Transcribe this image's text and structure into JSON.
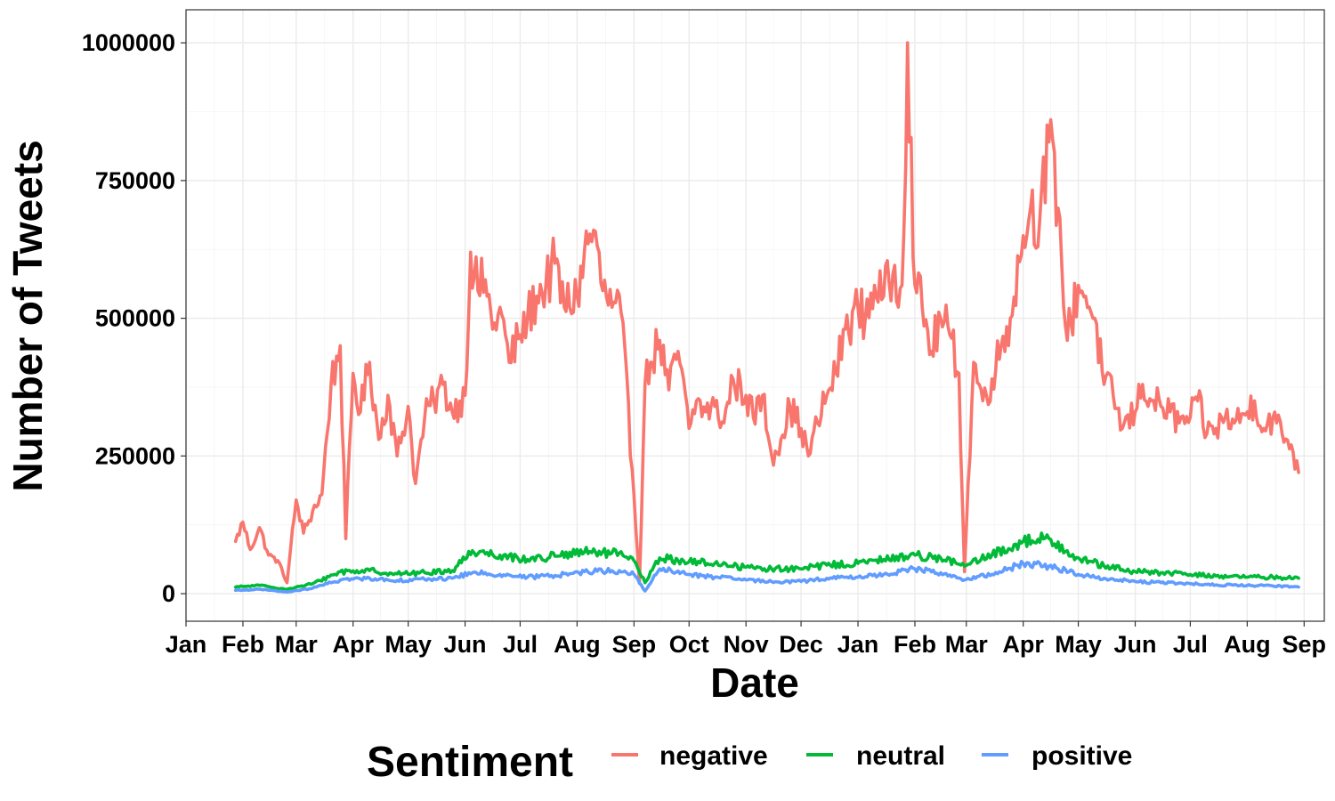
{
  "chart_data": {
    "type": "line",
    "title": "",
    "xlabel": "Date",
    "ylabel": "Number of Tweets",
    "xlim": [
      "2020-01-01",
      "2021-09-12"
    ],
    "ylim": [
      -50000,
      1060000
    ],
    "y_ticks": [
      0,
      250000,
      500000,
      750000,
      1000000
    ],
    "y_tick_labels": [
      "0",
      "250000",
      "500000",
      "750000",
      "1000000"
    ],
    "x_ticks": [
      "2020-01-01",
      "2020-02-01",
      "2020-03-01",
      "2020-04-01",
      "2020-05-01",
      "2020-06-01",
      "2020-07-01",
      "2020-08-01",
      "2020-09-01",
      "2020-10-01",
      "2020-11-01",
      "2020-12-01",
      "2021-01-01",
      "2021-02-01",
      "2021-03-01",
      "2021-04-01",
      "2021-05-01",
      "2021-06-01",
      "2021-07-01",
      "2021-08-01",
      "2021-09-01"
    ],
    "x_tick_labels": [
      "Jan",
      "Feb",
      "Mar",
      "Apr",
      "May",
      "Jun",
      "Jul",
      "Aug",
      "Sep",
      "Oct",
      "Nov",
      "Dec",
      "Jan",
      "Feb",
      "Mar",
      "Apr",
      "May",
      "Jun",
      "Jul",
      "Aug",
      "Sep"
    ],
    "grid": true,
    "legend": {
      "title": "Sentiment",
      "position": "bottom"
    },
    "series": [
      {
        "name": "negative",
        "color": "#F8766D",
        "x": [
          "2020-01-28",
          "2020-02-01",
          "2020-02-05",
          "2020-02-10",
          "2020-02-15",
          "2020-02-20",
          "2020-02-25",
          "2020-03-01",
          "2020-03-05",
          "2020-03-10",
          "2020-03-15",
          "2020-03-20",
          "2020-03-25",
          "2020-03-28",
          "2020-04-01",
          "2020-04-05",
          "2020-04-10",
          "2020-04-15",
          "2020-04-20",
          "2020-04-25",
          "2020-05-01",
          "2020-05-05",
          "2020-05-10",
          "2020-05-15",
          "2020-05-20",
          "2020-05-25",
          "2020-06-01",
          "2020-06-04",
          "2020-06-08",
          "2020-06-12",
          "2020-06-16",
          "2020-06-20",
          "2020-06-25",
          "2020-07-01",
          "2020-07-05",
          "2020-07-10",
          "2020-07-15",
          "2020-07-20",
          "2020-07-25",
          "2020-08-01",
          "2020-08-05",
          "2020-08-10",
          "2020-08-15",
          "2020-08-20",
          "2020-08-25",
          "2020-09-01",
          "2020-09-04",
          "2020-09-07",
          "2020-09-10",
          "2020-09-15",
          "2020-09-20",
          "2020-09-25",
          "2020-10-01",
          "2020-10-05",
          "2020-10-10",
          "2020-10-15",
          "2020-10-20",
          "2020-10-25",
          "2020-11-01",
          "2020-11-05",
          "2020-11-10",
          "2020-11-15",
          "2020-11-20",
          "2020-11-25",
          "2020-12-01",
          "2020-12-05",
          "2020-12-10",
          "2020-12-15",
          "2020-12-20",
          "2020-12-25",
          "2021-01-01",
          "2021-01-05",
          "2021-01-10",
          "2021-01-15",
          "2021-01-20",
          "2021-01-25",
          "2021-01-28",
          "2021-02-01",
          "2021-02-05",
          "2021-02-10",
          "2021-02-15",
          "2021-02-20",
          "2021-02-25",
          "2021-02-28",
          "2021-03-05",
          "2021-03-10",
          "2021-03-15",
          "2021-03-20",
          "2021-03-25",
          "2021-04-01",
          "2021-04-05",
          "2021-04-10",
          "2021-04-15",
          "2021-04-20",
          "2021-04-25",
          "2021-05-01",
          "2021-05-05",
          "2021-05-10",
          "2021-05-15",
          "2021-05-20",
          "2021-05-25",
          "2021-06-01",
          "2021-06-05",
          "2021-06-10",
          "2021-06-15",
          "2021-06-20",
          "2021-06-25",
          "2021-07-01",
          "2021-07-05",
          "2021-07-10",
          "2021-07-15",
          "2021-07-20",
          "2021-07-25",
          "2021-08-01",
          "2021-08-05",
          "2021-08-10",
          "2021-08-15",
          "2021-08-20",
          "2021-08-25",
          "2021-08-29"
        ],
        "y": [
          95000,
          130000,
          80000,
          120000,
          70000,
          60000,
          20000,
          170000,
          110000,
          150000,
          180000,
          380000,
          450000,
          100000,
          400000,
          330000,
          420000,
          280000,
          360000,
          250000,
          340000,
          200000,
          320000,
          350000,
          380000,
          330000,
          360000,
          620000,
          550000,
          570000,
          480000,
          520000,
          420000,
          470000,
          500000,
          540000,
          560000,
          600000,
          520000,
          540000,
          620000,
          660000,
          550000,
          520000,
          510000,
          180000,
          20000,
          380000,
          420000,
          460000,
          370000,
          440000,
          300000,
          350000,
          330000,
          340000,
          310000,
          390000,
          360000,
          320000,
          360000,
          250000,
          280000,
          340000,
          300000,
          250000,
          310000,
          360000,
          400000,
          480000,
          520000,
          500000,
          560000,
          540000,
          580000,
          560000,
          1000000,
          560000,
          520000,
          440000,
          500000,
          470000,
          400000,
          40000,
          420000,
          350000,
          390000,
          450000,
          500000,
          650000,
          700000,
          680000,
          820000,
          700000,
          460000,
          560000,
          540000,
          500000,
          380000,
          360000,
          300000,
          330000,
          380000,
          350000,
          340000,
          330000,
          310000,
          320000,
          350000,
          290000,
          300000,
          320000,
          310000,
          330000,
          350000,
          300000,
          320000,
          290000,
          270000,
          220000
        ]
      },
      {
        "name": "neutral",
        "color": "#00BA38",
        "x": [
          "2020-01-28",
          "2020-02-10",
          "2020-02-25",
          "2020-03-10",
          "2020-03-25",
          "2020-04-10",
          "2020-04-25",
          "2020-05-10",
          "2020-05-25",
          "2020-06-05",
          "2020-06-20",
          "2020-07-05",
          "2020-07-20",
          "2020-08-05",
          "2020-08-20",
          "2020-09-01",
          "2020-09-07",
          "2020-09-15",
          "2020-10-01",
          "2020-10-15",
          "2020-11-01",
          "2020-11-15",
          "2020-12-01",
          "2020-12-15",
          "2021-01-01",
          "2021-01-15",
          "2021-02-01",
          "2021-02-15",
          "2021-02-28",
          "2021-03-15",
          "2021-04-01",
          "2021-04-15",
          "2021-05-01",
          "2021-05-15",
          "2021-06-01",
          "2021-06-15",
          "2021-07-01",
          "2021-07-15",
          "2021-08-01",
          "2021-08-15",
          "2021-08-29"
        ],
        "y": [
          12000,
          15000,
          8000,
          18000,
          40000,
          42000,
          36000,
          38000,
          42000,
          78000,
          70000,
          62000,
          68000,
          75000,
          74000,
          60000,
          20000,
          65000,
          58000,
          55000,
          48000,
          45000,
          45000,
          52000,
          55000,
          62000,
          70000,
          65000,
          50000,
          70000,
          95000,
          100000,
          65000,
          50000,
          40000,
          38000,
          35000,
          32000,
          30000,
          30000,
          28000
        ]
      },
      {
        "name": "positive",
        "color": "#619CFF",
        "x": [
          "2020-01-28",
          "2020-02-10",
          "2020-02-25",
          "2020-03-10",
          "2020-03-25",
          "2020-04-10",
          "2020-04-25",
          "2020-05-10",
          "2020-05-25",
          "2020-06-05",
          "2020-06-20",
          "2020-07-05",
          "2020-07-20",
          "2020-08-05",
          "2020-08-20",
          "2020-09-01",
          "2020-09-07",
          "2020-09-15",
          "2020-10-01",
          "2020-10-15",
          "2020-11-01",
          "2020-11-15",
          "2020-12-01",
          "2020-12-15",
          "2021-01-01",
          "2021-01-15",
          "2021-02-01",
          "2021-02-15",
          "2021-02-28",
          "2021-03-15",
          "2021-04-01",
          "2021-04-15",
          "2021-05-01",
          "2021-05-15",
          "2021-06-01",
          "2021-06-15",
          "2021-07-01",
          "2021-07-15",
          "2021-08-01",
          "2021-08-15",
          "2021-08-29"
        ],
        "y": [
          6000,
          8000,
          3000,
          10000,
          25000,
          28000,
          24000,
          26000,
          28000,
          38000,
          35000,
          30000,
          33000,
          40000,
          42000,
          35000,
          5000,
          45000,
          35000,
          30000,
          25000,
          22000,
          22000,
          28000,
          30000,
          35000,
          45000,
          38000,
          25000,
          35000,
          55000,
          50000,
          35000,
          28000,
          22000,
          20000,
          18000,
          16000,
          15000,
          14000,
          12000
        ]
      }
    ]
  }
}
